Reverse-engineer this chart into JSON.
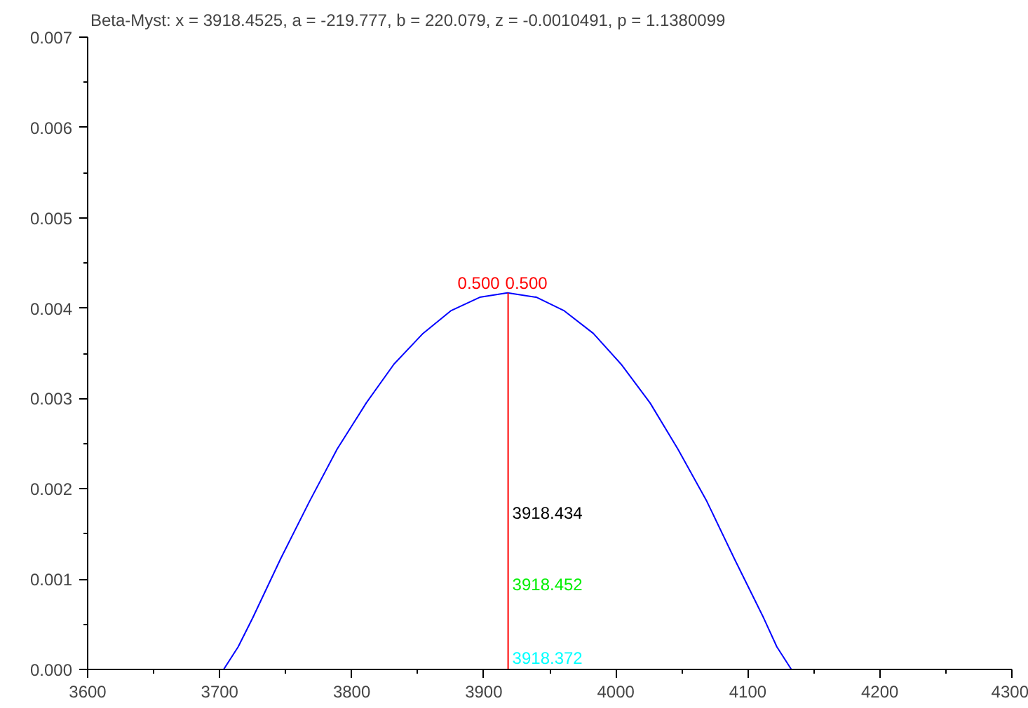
{
  "chart_data": {
    "type": "line",
    "title": "Beta-Myst:  x = 3918.4525,  a = -219.777,  b = 220.079,  z = -0.0010491,  p = 1.1380099",
    "series": [
      {
        "color": "#0000ff",
        "x": [
          3703,
          3714,
          3725,
          3746,
          3768,
          3789,
          3811,
          3832,
          3854,
          3875,
          3897,
          3918,
          3940,
          3961,
          3983,
          4004,
          4026,
          4047,
          4069,
          4090,
          4112,
          4122,
          4133
        ],
        "values": [
          0,
          0.00025,
          0.00057,
          0.00122,
          0.00186,
          0.00244,
          0.00295,
          0.00338,
          0.00372,
          0.00397,
          0.00412,
          0.00417,
          0.00412,
          0.00397,
          0.00372,
          0.00338,
          0.00295,
          0.00244,
          0.00186,
          0.00122,
          0.00057,
          0.00025,
          0
        ]
      },
      {
        "color": "#ff0000",
        "x": [
          3918.45,
          3918.45
        ],
        "values": [
          0,
          0.00417
        ]
      }
    ],
    "xlim": [
      3600,
      4300
    ],
    "xticks": [
      3600,
      3700,
      3800,
      3900,
      4000,
      4100,
      4200,
      4300
    ],
    "ylim": [
      0,
      0.007
    ],
    "yticks": [
      {
        "value": 0,
        "label": "0.000"
      },
      {
        "value": 0.001,
        "label": "0.001"
      },
      {
        "value": 0.002,
        "label": "0.002"
      },
      {
        "value": 0.003,
        "label": "0.003"
      },
      {
        "value": 0.004,
        "label": "0.004"
      },
      {
        "value": 0.005,
        "label": "0.005"
      },
      {
        "value": 0.006,
        "label": "0.006"
      },
      {
        "value": 0.007,
        "label": "0.007"
      }
    ],
    "grid": false,
    "marker": "none",
    "line_style": "solid",
    "annotations": [
      "0.500",
      "0.500",
      "3918.434",
      "3918.452",
      "3918.372"
    ]
  }
}
